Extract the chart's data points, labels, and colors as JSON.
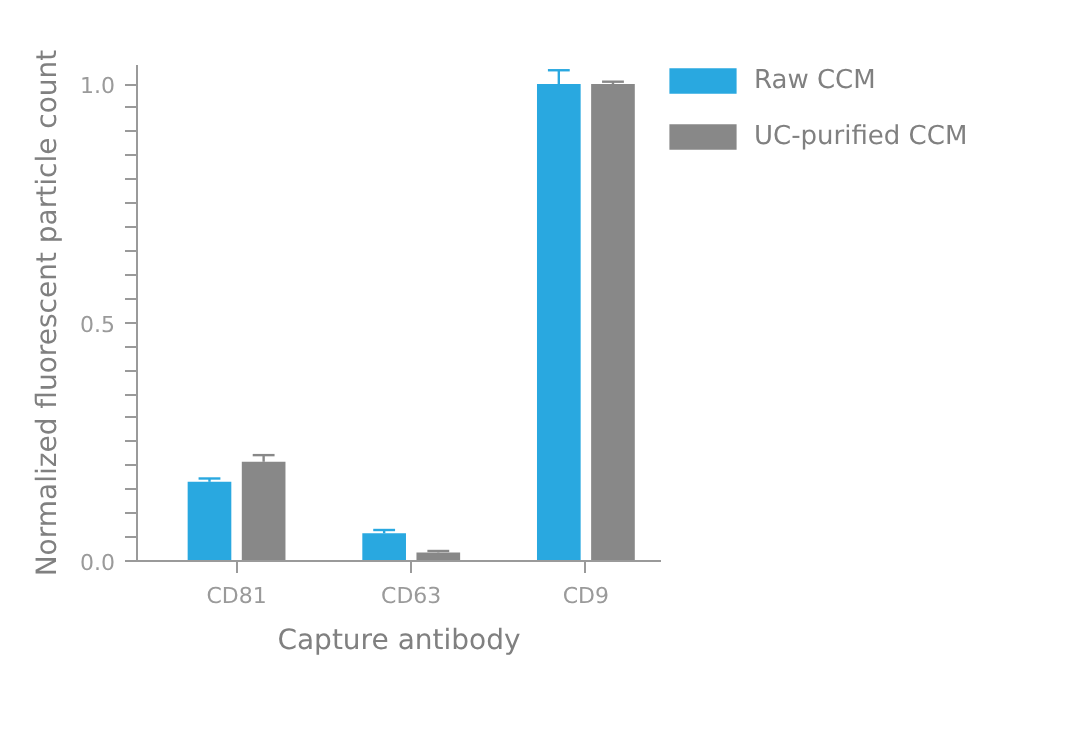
{
  "chart_data": {
    "type": "bar",
    "xlabel": "Capture antibody",
    "ylabel": "Normalized fluorescent particle count",
    "categories": [
      "CD81",
      "CD63",
      "CD9"
    ],
    "series": [
      {
        "name": "Raw CCM",
        "color": "#29a8e0",
        "values": [
          0.166,
          0.058,
          1.0
        ],
        "errors": [
          [
            0.166,
            0.173
          ],
          [
            0.058,
            0.065
          ],
          [
            1.0,
            1.029
          ]
        ]
      },
      {
        "name": "UC-purified CCM",
        "color": "#888888",
        "values": [
          0.208,
          0.018,
          1.0
        ],
        "errors": [
          [
            0.208,
            0.222
          ],
          [
            0.018,
            0.021
          ],
          [
            1.0,
            1.005
          ]
        ]
      }
    ],
    "ylim": [
      0,
      1.04
    ],
    "yticks": [
      {
        "value": 0,
        "label": "0.0"
      },
      {
        "value": 0.05,
        "label": null
      },
      {
        "value": 0.1,
        "label": null
      },
      {
        "value": 0.15,
        "label": null
      },
      {
        "value": 0.2,
        "label": null
      },
      {
        "value": 0.25,
        "label": null
      },
      {
        "value": 0.3,
        "label": null
      },
      {
        "value": 0.35,
        "label": null
      },
      {
        "value": 0.4,
        "label": null
      },
      {
        "value": 0.45,
        "label": null
      },
      {
        "value": 0.5,
        "label": "0.5"
      },
      {
        "value": 0.55,
        "label": null
      },
      {
        "value": 0.6,
        "label": null
      },
      {
        "value": 0.65,
        "label": null
      },
      {
        "value": 0.7,
        "label": null
      },
      {
        "value": 0.75,
        "label": null
      },
      {
        "value": 0.8,
        "label": null
      },
      {
        "value": 0.85,
        "label": null
      },
      {
        "value": 0.9,
        "label": null
      },
      {
        "value": 0.95,
        "label": null
      },
      {
        "value": 1.0,
        "label": "1.0"
      }
    ],
    "grid": false,
    "legend": "right"
  }
}
